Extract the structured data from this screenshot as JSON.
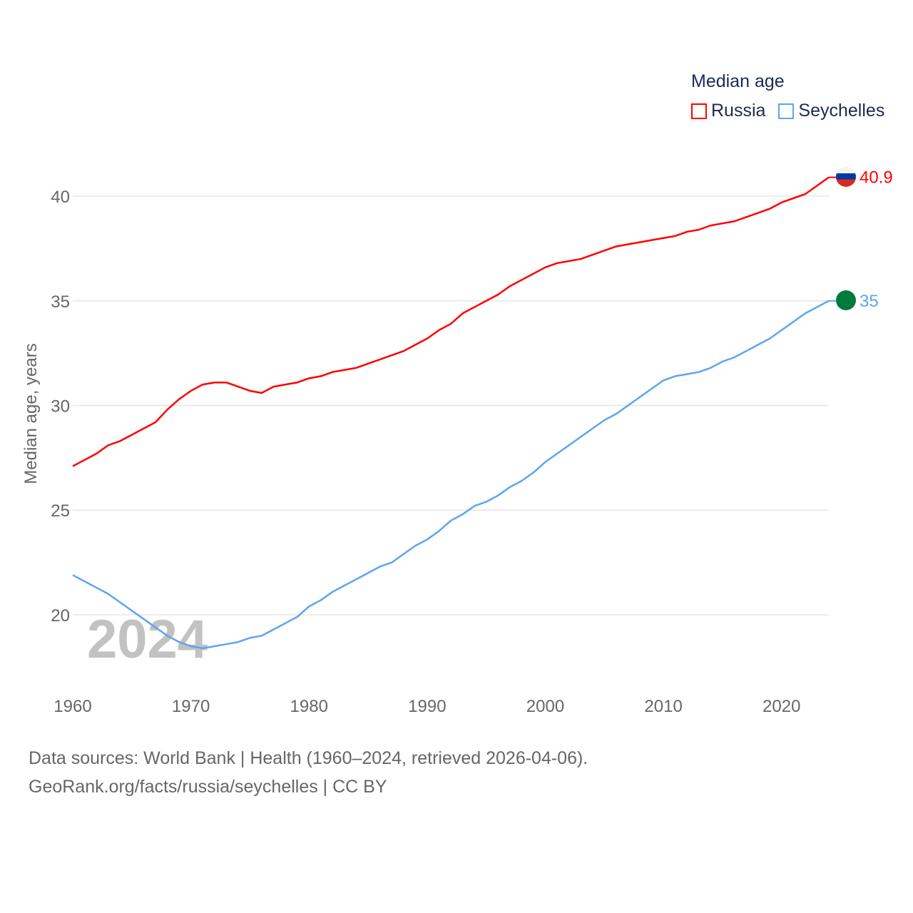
{
  "chart_data": {
    "type": "line",
    "title": "Median age",
    "xlabel": "",
    "ylabel": "Median age, years",
    "xlim": [
      1960,
      2024
    ],
    "ylim": [
      17,
      43
    ],
    "xticks": [
      1960,
      1970,
      1980,
      1990,
      2000,
      2010,
      2020
    ],
    "yticks": [
      20,
      25,
      30,
      35,
      40
    ],
    "grid": true,
    "legend_position": "top-right",
    "watermark_year": "2024",
    "x": [
      1960,
      1961,
      1962,
      1963,
      1964,
      1965,
      1966,
      1967,
      1968,
      1969,
      1970,
      1971,
      1972,
      1973,
      1974,
      1975,
      1976,
      1977,
      1978,
      1979,
      1980,
      1981,
      1982,
      1983,
      1984,
      1985,
      1986,
      1987,
      1988,
      1989,
      1990,
      1991,
      1992,
      1993,
      1994,
      1995,
      1996,
      1997,
      1998,
      1999,
      2000,
      2001,
      2002,
      2003,
      2004,
      2005,
      2006,
      2007,
      2008,
      2009,
      2010,
      2011,
      2012,
      2013,
      2014,
      2015,
      2016,
      2017,
      2018,
      2019,
      2020,
      2021,
      2022,
      2023,
      2024
    ],
    "series": [
      {
        "name": "Russia",
        "color": "#ff0000",
        "end_label": "40.9",
        "values": [
          27.1,
          27.4,
          27.7,
          28.1,
          28.3,
          28.6,
          28.9,
          29.2,
          29.8,
          30.3,
          30.7,
          31.0,
          31.1,
          31.1,
          30.9,
          30.7,
          30.6,
          30.9,
          31.0,
          31.1,
          31.3,
          31.4,
          31.6,
          31.7,
          31.8,
          32.0,
          32.2,
          32.4,
          32.6,
          32.9,
          33.2,
          33.6,
          33.9,
          34.4,
          34.7,
          35.0,
          35.3,
          35.7,
          36.0,
          36.3,
          36.6,
          36.8,
          36.9,
          37.0,
          37.2,
          37.4,
          37.6,
          37.7,
          37.8,
          37.9,
          38.0,
          38.1,
          38.3,
          38.4,
          38.6,
          38.7,
          38.8,
          39.0,
          39.2,
          39.4,
          39.7,
          39.9,
          40.1,
          40.5,
          40.9
        ]
      },
      {
        "name": "Seychelles",
        "color": "#5da5f0",
        "end_label": "35",
        "values": [
          21.9,
          21.6,
          21.3,
          21.0,
          20.6,
          20.2,
          19.8,
          19.4,
          19.0,
          18.7,
          18.5,
          18.4,
          18.5,
          18.6,
          18.7,
          18.9,
          19.0,
          19.3,
          19.6,
          19.9,
          20.4,
          20.7,
          21.1,
          21.4,
          21.7,
          22.0,
          22.3,
          22.5,
          22.9,
          23.3,
          23.6,
          24.0,
          24.5,
          24.8,
          25.2,
          25.4,
          25.7,
          26.1,
          26.4,
          26.8,
          27.3,
          27.7,
          28.1,
          28.5,
          28.9,
          29.3,
          29.6,
          30.0,
          30.4,
          30.8,
          31.2,
          31.4,
          31.5,
          31.6,
          31.8,
          32.1,
          32.3,
          32.6,
          32.9,
          33.2,
          33.6,
          34.0,
          34.4,
          34.7,
          35.0
        ]
      }
    ]
  },
  "footer": {
    "line1": "Data sources: World Bank | Health (1960–2024, retrieved 2026-04-06).",
    "line2": "GeoRank.org/facts/russia/seychelles | CC BY"
  }
}
